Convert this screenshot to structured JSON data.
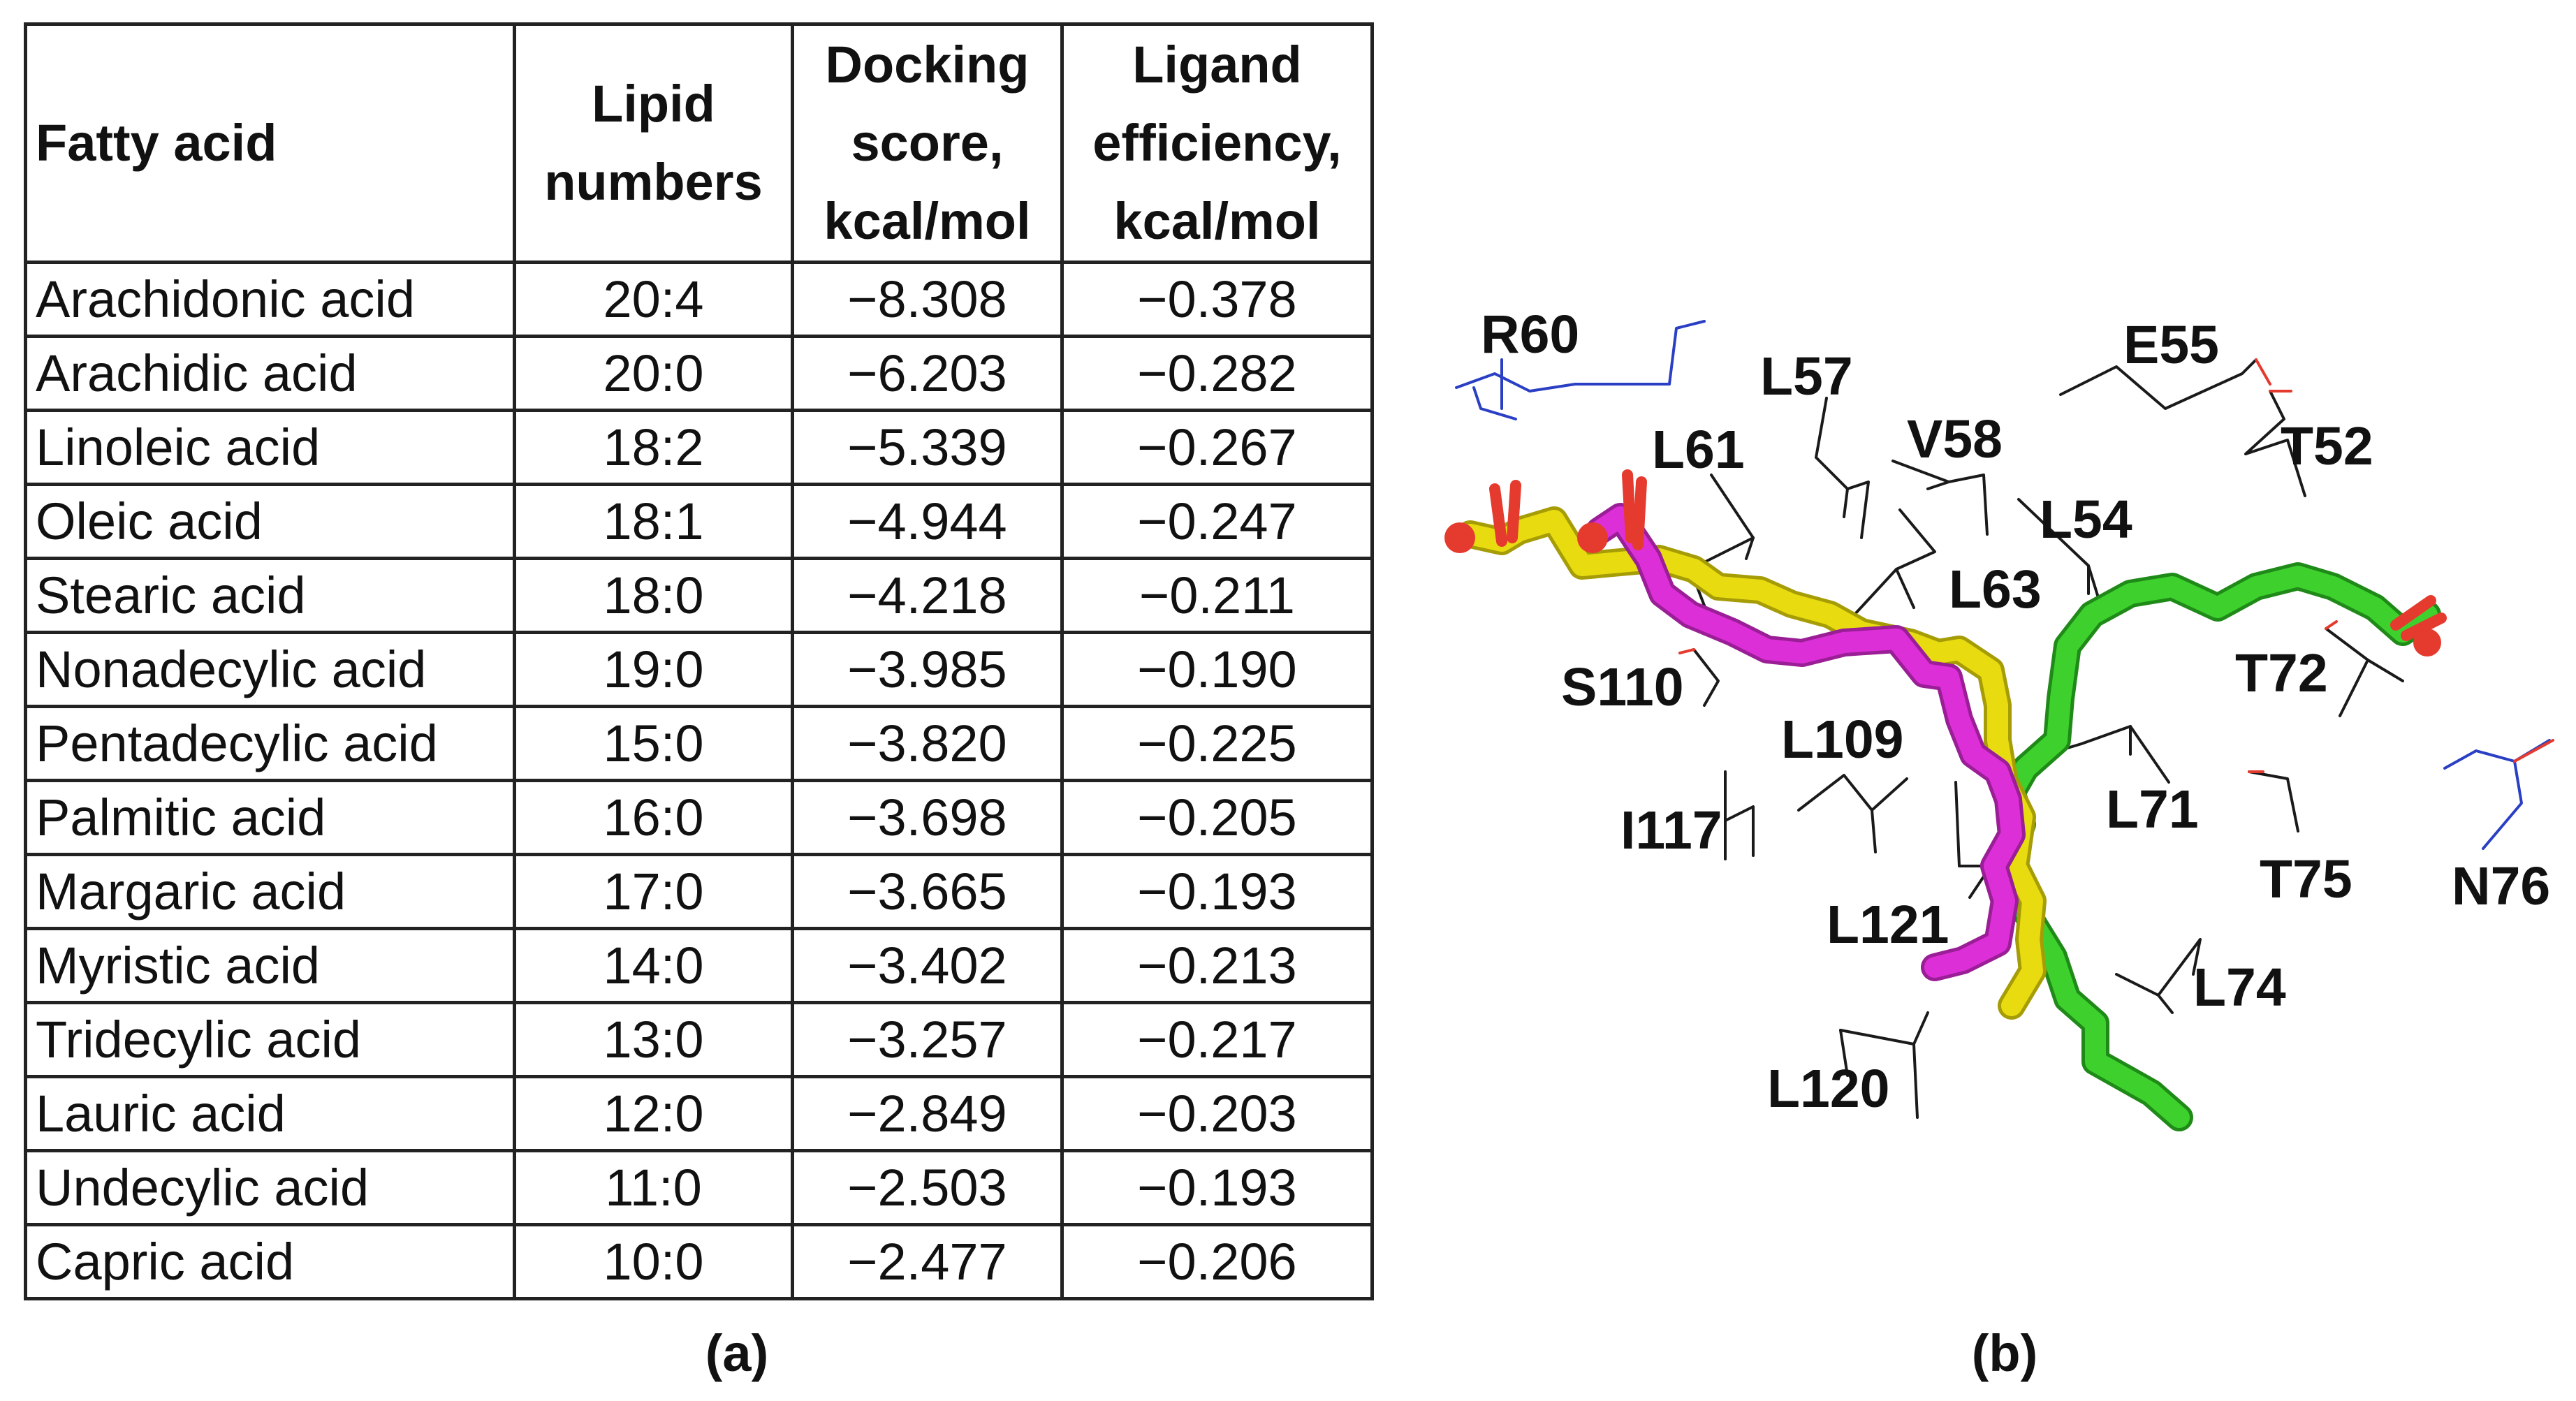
{
  "table": {
    "headers": [
      "Fatty acid",
      "Lipid numbers",
      "Docking score, kcal/mol",
      "Ligand efficiency, kcal/mol"
    ],
    "rows": [
      {
        "name": "Arachidonic acid",
        "lipid": "20:4",
        "score": "−8.308",
        "le": "−0.378"
      },
      {
        "name": "Arachidic acid",
        "lipid": "20:0",
        "score": "−6.203",
        "le": "−0.282"
      },
      {
        "name": "Linoleic acid",
        "lipid": "18:2",
        "score": "−5.339",
        "le": "−0.267"
      },
      {
        "name": "Oleic acid",
        "lipid": "18:1",
        "score": "−4.944",
        "le": "−0.247"
      },
      {
        "name": "Stearic acid",
        "lipid": "18:0",
        "score": "−4.218",
        "le": "−0.211"
      },
      {
        "name": "Nonadecylic acid",
        "lipid": "19:0",
        "score": "−3.985",
        "le": "−0.190"
      },
      {
        "name": "Pentadecylic acid",
        "lipid": "15:0",
        "score": "−3.820",
        "le": "−0.225"
      },
      {
        "name": "Palmitic acid",
        "lipid": "16:0",
        "score": "−3.698",
        "le": "−0.205"
      },
      {
        "name": "Margaric acid",
        "lipid": "17:0",
        "score": "−3.665",
        "le": "−0.193"
      },
      {
        "name": "Myristic acid",
        "lipid": "14:0",
        "score": "−3.402",
        "le": "−0.213"
      },
      {
        "name": "Tridecylic acid",
        "lipid": "13:0",
        "score": "−3.257",
        "le": "−0.217"
      },
      {
        "name": "Lauric acid",
        "lipid": "12:0",
        "score": "−2.849",
        "le": "−0.203"
      },
      {
        "name": "Undecylic acid",
        "lipid": "11:0",
        "score": "−2.503",
        "le": "−0.193"
      },
      {
        "name": "Capric acid",
        "lipid": "10:0",
        "score": "−2.477",
        "le": "−0.206"
      }
    ]
  },
  "captions": {
    "a": "(a)",
    "b": "(b)"
  },
  "residues": {
    "R60": "R60",
    "E55": "E55",
    "L57": "L57",
    "V58": "V58",
    "T52": "T52",
    "L61": "L61",
    "L54": "L54",
    "L63": "L63",
    "S110": "S110",
    "T72": "T72",
    "L109": "L109",
    "L71": "L71",
    "I117": "I117",
    "T75": "T75",
    "N76": "N76",
    "L121": "L121",
    "L74": "L74",
    "L120": "L120"
  },
  "colors": {
    "yellow": "#e8dc10",
    "magenta": "#dd2fd8",
    "green": "#3ed12e",
    "oxygen": "#e53a2e",
    "nitrogen": "#2a3fc4",
    "line": "#1a1a1a"
  }
}
